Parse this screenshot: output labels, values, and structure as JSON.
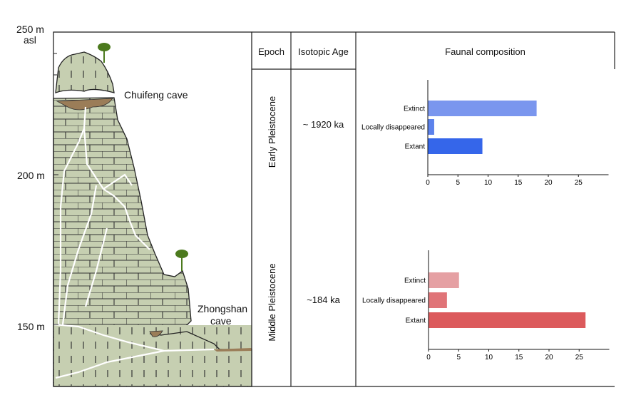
{
  "elevation_axis": {
    "top_label": "250 m",
    "top_unit": "asl",
    "ticks": [
      "200 m",
      "150 m"
    ]
  },
  "caves": {
    "upper": "Chuifeng cave",
    "lower_line1": "Zhongshan",
    "lower_line2": "cave"
  },
  "table": {
    "headers": [
      "Epoch",
      "Isotopic Age",
      "Faunal composition"
    ],
    "rows": [
      {
        "epoch": "Early Pleistocene",
        "age": "~ 1920 ka"
      },
      {
        "epoch": "Middle Pleistocene",
        "age": "~184 ka"
      }
    ]
  },
  "colors": {
    "limestone": "#c6cfb1",
    "sediment": "#9b7d58",
    "tree": "#4c7a1e"
  },
  "chart_data": [
    {
      "type": "bar",
      "orientation": "horizontal",
      "categories": [
        "Extinct",
        "Locally disappeared",
        "Extant"
      ],
      "values": [
        18,
        1,
        9
      ],
      "colors": [
        "#7a96ee",
        "#5c82ec",
        "#3566ea"
      ],
      "xticks": [
        "0",
        "5",
        "10",
        "15",
        "20",
        "25"
      ],
      "xlim": [
        0,
        30
      ],
      "grid": false
    },
    {
      "type": "bar",
      "orientation": "horizontal",
      "categories": [
        "Extinct",
        "Locally disappeared",
        "Extant"
      ],
      "values": [
        5,
        3,
        26
      ],
      "colors": [
        "#e5a0a3",
        "#e07478",
        "#dc5a5c"
      ],
      "xticks": [
        "0",
        "5",
        "10",
        "15",
        "20",
        "25"
      ],
      "xlim": [
        0,
        30
      ],
      "grid": false
    }
  ]
}
